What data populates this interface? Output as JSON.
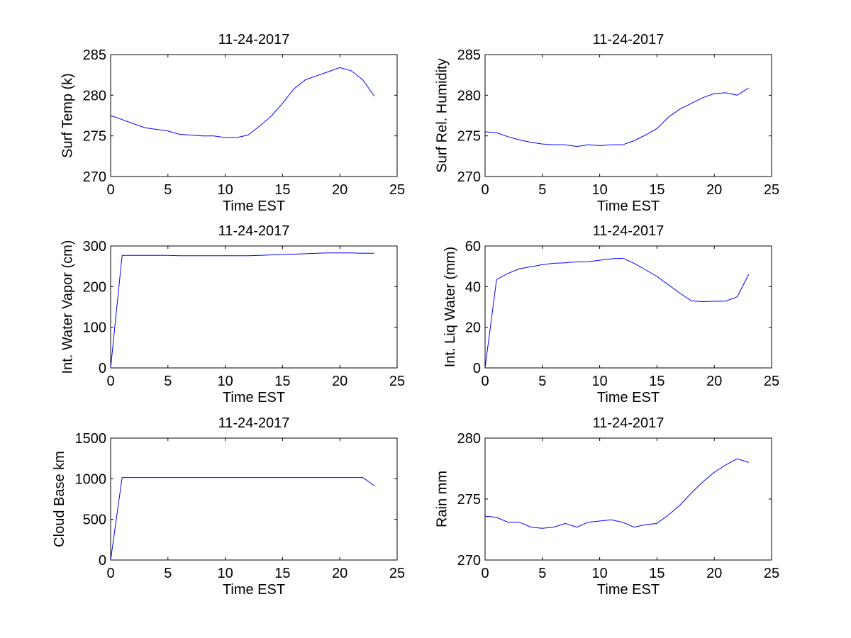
{
  "chart_data": [
    {
      "type": "line",
      "title": "11-24-2017",
      "xlabel": "Time EST",
      "ylabel": "Surf Temp (k)",
      "xlim": [
        0,
        25
      ],
      "ylim": [
        270,
        285
      ],
      "xticks": [
        0,
        5,
        10,
        15,
        20,
        25
      ],
      "yticks": [
        270,
        275,
        280,
        285
      ],
      "line_color": "#0000ff",
      "x": [
        0,
        1,
        2,
        3,
        4,
        5,
        6,
        7,
        8,
        9,
        10,
        11,
        12,
        13,
        14,
        15,
        16,
        17,
        18,
        19,
        20,
        21,
        22,
        23
      ],
      "y": [
        277.5,
        277.0,
        276.5,
        276.0,
        275.8,
        275.6,
        275.2,
        275.1,
        275.0,
        275.0,
        274.8,
        274.8,
        275.1,
        276.2,
        277.4,
        279.0,
        280.8,
        281.9,
        282.4,
        282.9,
        283.4,
        283.0,
        281.9,
        279.9
      ]
    },
    {
      "type": "line",
      "title": "11-24-2017",
      "xlabel": "Time EST",
      "ylabel": "Surf Rel. Humidity",
      "xlim": [
        0,
        25
      ],
      "ylim": [
        270,
        285
      ],
      "xticks": [
        0,
        5,
        10,
        15,
        20,
        25
      ],
      "yticks": [
        270,
        275,
        280,
        285
      ],
      "line_color": "#0000ff",
      "x": [
        0,
        1,
        2,
        3,
        4,
        5,
        6,
        7,
        8,
        9,
        10,
        11,
        12,
        13,
        14,
        15,
        16,
        17,
        18,
        19,
        20,
        21,
        22,
        23
      ],
      "y": [
        275.5,
        275.4,
        274.9,
        274.5,
        274.2,
        274.0,
        273.9,
        273.9,
        273.7,
        273.9,
        273.8,
        273.9,
        273.9,
        274.4,
        275.1,
        275.9,
        277.3,
        278.3,
        279.0,
        279.7,
        280.2,
        280.3,
        280.0,
        280.9
      ]
    },
    {
      "type": "line",
      "title": "11-24-2017",
      "xlabel": "Time EST",
      "ylabel": "Int. Water Vapor (cm)",
      "xlim": [
        0,
        25
      ],
      "ylim": [
        0,
        300
      ],
      "xticks": [
        0,
        5,
        10,
        15,
        20,
        25
      ],
      "yticks": [
        0,
        100,
        200,
        300
      ],
      "line_color": "#0000ff",
      "x": [
        0,
        1,
        2,
        3,
        4,
        5,
        6,
        7,
        8,
        9,
        10,
        11,
        12,
        13,
        14,
        15,
        16,
        17,
        18,
        19,
        20,
        21,
        22,
        23
      ],
      "y": [
        0,
        277,
        277,
        277,
        277,
        277,
        276,
        276,
        276,
        276,
        276,
        276,
        276,
        277,
        278,
        279,
        280,
        281,
        282,
        283,
        283,
        283,
        282,
        282
      ]
    },
    {
      "type": "line",
      "title": "11-24-2017",
      "xlabel": "Time EST",
      "ylabel": "Int. Liq Water (mm)",
      "xlim": [
        0,
        25
      ],
      "ylim": [
        0,
        60
      ],
      "xticks": [
        0,
        5,
        10,
        15,
        20,
        25
      ],
      "yticks": [
        0,
        20,
        40,
        60
      ],
      "line_color": "#0000ff",
      "x": [
        0,
        1,
        2,
        3,
        4,
        5,
        6,
        7,
        8,
        9,
        10,
        11,
        12,
        13,
        14,
        15,
        16,
        17,
        18,
        19,
        20,
        21,
        22,
        23
      ],
      "y": [
        0,
        43.5,
        46.5,
        48.8,
        49.8,
        50.8,
        51.5,
        51.7,
        52.2,
        52.3,
        53.0,
        53.7,
        54.0,
        51.5,
        48.3,
        45.0,
        40.9,
        36.8,
        33.0,
        32.6,
        32.8,
        32.9,
        35.0,
        46.0
      ]
    },
    {
      "type": "line",
      "title": "11-24-2017",
      "xlabel": "Time EST",
      "ylabel": "Cloud Base km",
      "xlim": [
        0,
        25
      ],
      "ylim": [
        0,
        1500
      ],
      "xticks": [
        0,
        5,
        10,
        15,
        20,
        25
      ],
      "yticks": [
        0,
        500,
        1000,
        1500
      ],
      "line_color": "#0000ff",
      "x": [
        0,
        1,
        2,
        3,
        4,
        5,
        6,
        7,
        8,
        9,
        10,
        11,
        12,
        13,
        14,
        15,
        16,
        17,
        18,
        19,
        20,
        21,
        22,
        23
      ],
      "y": [
        0,
        1015,
        1015,
        1015,
        1015,
        1015,
        1015,
        1015,
        1015,
        1015,
        1015,
        1015,
        1015,
        1015,
        1015,
        1015,
        1015,
        1015,
        1015,
        1015,
        1015,
        1015,
        1015,
        915
      ]
    },
    {
      "type": "line",
      "title": "11-24-2017",
      "xlabel": "Time EST",
      "ylabel": "Rain mm",
      "xlim": [
        0,
        25
      ],
      "ylim": [
        270,
        280
      ],
      "xticks": [
        0,
        5,
        10,
        15,
        20,
        25
      ],
      "yticks": [
        270,
        275,
        280
      ],
      "line_color": "#0000ff",
      "x": [
        0,
        1,
        2,
        3,
        4,
        5,
        6,
        7,
        8,
        9,
        10,
        11,
        12,
        13,
        14,
        15,
        16,
        17,
        18,
        19,
        20,
        21,
        22,
        23
      ],
      "y": [
        273.6,
        273.5,
        273.1,
        273.1,
        272.7,
        272.6,
        272.7,
        273.0,
        272.7,
        273.1,
        273.2,
        273.3,
        273.1,
        272.7,
        272.9,
        273.0,
        273.7,
        274.5,
        275.5,
        276.4,
        277.2,
        277.8,
        278.3,
        278.0
      ]
    }
  ]
}
